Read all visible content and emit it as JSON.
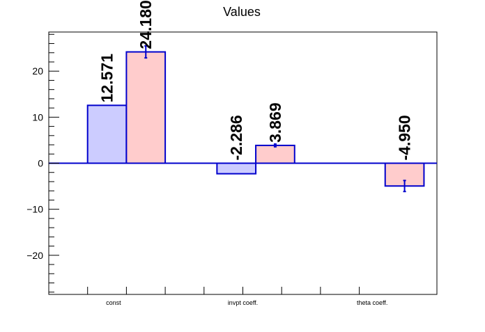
{
  "chart_data": {
    "type": "bar",
    "title": "Values",
    "xlabel": "",
    "ylabel": "",
    "categories": [
      "const",
      "invpt coeff.",
      "theta coeff."
    ],
    "ylim": [
      -28.5,
      28.5
    ],
    "y_ticks": [
      -20,
      -10,
      0,
      10,
      20
    ],
    "series": [
      {
        "color": "#ccccff",
        "edge_color": "#0000cc",
        "values": [
          12.571,
          -2.286,
          null
        ],
        "labels": [
          "12.571",
          "-2.286",
          ""
        ],
        "errors": [
          null,
          null,
          null
        ]
      },
      {
        "color": "#ffcccc",
        "edge_color": "#0000cc",
        "values": [
          24.18,
          3.869,
          -4.95
        ],
        "labels": [
          "24.180",
          "3.869",
          "-4.950"
        ],
        "errors": [
          1.3,
          0.3,
          1.2
        ]
      }
    ],
    "grid": false,
    "legend": "none",
    "zero_line_color": "#0000cc"
  }
}
